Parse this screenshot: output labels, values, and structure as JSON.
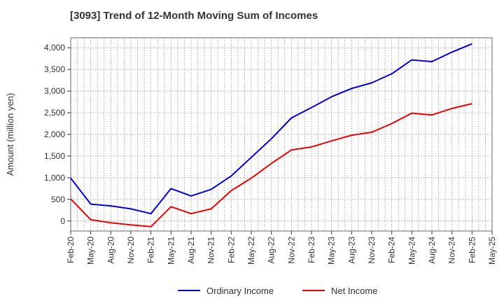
{
  "chart_data": {
    "type": "line",
    "title": "[3093]  Trend of 12-Month Moving Sum of Incomes",
    "xlabel": "",
    "ylabel": "Amount (million yen)",
    "ylim": [
      -230,
      4230
    ],
    "yticks": [
      0,
      500,
      1000,
      1500,
      2000,
      2500,
      3000,
      3500,
      4000
    ],
    "ytick_labels": [
      "0",
      "500",
      "1,000",
      "1,500",
      "2,000",
      "2,500",
      "3,000",
      "3,500",
      "4,000"
    ],
    "x_ticks": [
      "Feb-20",
      "May-20",
      "Aug-20",
      "Nov-20",
      "Feb-21",
      "May-21",
      "Aug-21",
      "Nov-21",
      "Feb-22",
      "May-22",
      "Aug-22",
      "Nov-22",
      "Feb-23",
      "May-23",
      "Aug-23",
      "Nov-23",
      "Feb-24",
      "May-24",
      "Aug-24",
      "Nov-24",
      "Feb-25",
      "May-25"
    ],
    "categories": [
      "Feb-20",
      "May-20",
      "Aug-20",
      "Nov-20",
      "Feb-21",
      "May-21",
      "Aug-21",
      "Nov-21",
      "Feb-22",
      "May-22",
      "Aug-22",
      "Nov-22",
      "Feb-23",
      "May-23",
      "Aug-23",
      "Nov-23",
      "Feb-24",
      "May-24",
      "Aug-24",
      "Nov-24",
      "Feb-25"
    ],
    "series": [
      {
        "name": "Ordinary Income",
        "color": "#0000dd",
        "values": [
          990,
          390,
          350,
          280,
          170,
          750,
          580,
          730,
          1040,
          1470,
          1900,
          2380,
          2620,
          2870,
          3060,
          3190,
          3400,
          3720,
          3680,
          3900,
          4090
        ]
      },
      {
        "name": "Net Income",
        "color": "#ee0000",
        "values": [
          510,
          30,
          -40,
          -90,
          -130,
          330,
          170,
          280,
          700,
          990,
          1330,
          1640,
          1710,
          1850,
          1980,
          2050,
          2250,
          2490,
          2450,
          2600,
          2710
        ]
      }
    ],
    "grid": true,
    "legend": "bottom-center"
  }
}
